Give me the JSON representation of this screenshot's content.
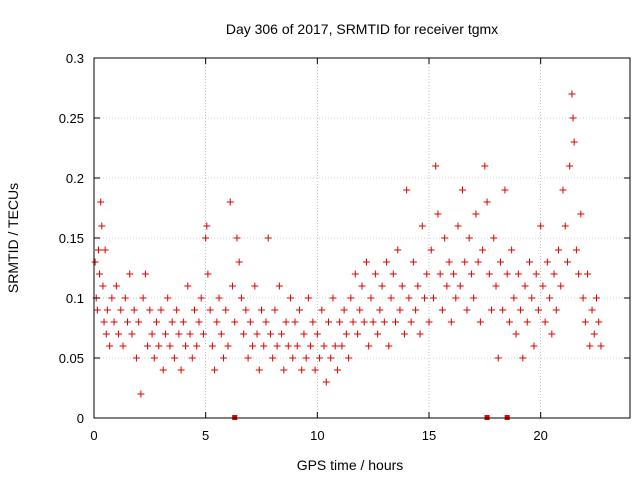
{
  "chart_data": {
    "type": "scatter",
    "title": "Day 306 of 2017, SRMTID for receiver tgmx",
    "xlabel": "GPS time / hours",
    "ylabel": "SRMTID / TECUs",
    "xlim": [
      0,
      24
    ],
    "ylim": [
      0,
      0.3
    ],
    "xticks": [
      0,
      5,
      10,
      15,
      20
    ],
    "xtick_labels": [
      "0",
      "5",
      "10",
      "15",
      "20"
    ],
    "yticks": [
      0,
      0.05,
      0.1,
      0.15,
      0.2,
      0.25,
      0.3
    ],
    "ytick_labels": [
      "0",
      "0.05",
      "0.1",
      "0.15",
      "0.2",
      "0.25",
      "0.3"
    ],
    "grid": true,
    "marker": "+",
    "color": "#e00000",
    "series": [
      {
        "name": "SRMTID",
        "points": [
          [
            0.05,
            0.13
          ],
          [
            0.1,
            0.1
          ],
          [
            0.15,
            0.09
          ],
          [
            0.2,
            0.14
          ],
          [
            0.25,
            0.12
          ],
          [
            0.3,
            0.18
          ],
          [
            0.35,
            0.16
          ],
          [
            0.4,
            0.11
          ],
          [
            0.45,
            0.08
          ],
          [
            0.5,
            0.14
          ],
          [
            0.55,
            0.07
          ],
          [
            0.6,
            0.09
          ],
          [
            0.7,
            0.06
          ],
          [
            0.8,
            0.1
          ],
          [
            0.9,
            0.08
          ],
          [
            1.0,
            0.11
          ],
          [
            1.1,
            0.07
          ],
          [
            1.2,
            0.09
          ],
          [
            1.3,
            0.06
          ],
          [
            1.4,
            0.1
          ],
          [
            1.5,
            0.08
          ],
          [
            1.6,
            0.12
          ],
          [
            1.7,
            0.07
          ],
          [
            1.8,
            0.09
          ],
          [
            1.9,
            0.05
          ],
          [
            2.0,
            0.08
          ],
          [
            2.1,
            0.02
          ],
          [
            2.2,
            0.1
          ],
          [
            2.3,
            0.12
          ],
          [
            2.4,
            0.06
          ],
          [
            2.5,
            0.09
          ],
          [
            2.6,
            0.07
          ],
          [
            2.7,
            0.05
          ],
          [
            2.8,
            0.08
          ],
          [
            2.9,
            0.06
          ],
          [
            3.0,
            0.09
          ],
          [
            3.1,
            0.04
          ],
          [
            3.2,
            0.07
          ],
          [
            3.3,
            0.1
          ],
          [
            3.4,
            0.06
          ],
          [
            3.5,
            0.08
          ],
          [
            3.6,
            0.05
          ],
          [
            3.7,
            0.09
          ],
          [
            3.8,
            0.07
          ],
          [
            3.9,
            0.04
          ],
          [
            4.0,
            0.08
          ],
          [
            4.1,
            0.06
          ],
          [
            4.2,
            0.11
          ],
          [
            4.3,
            0.07
          ],
          [
            4.4,
            0.05
          ],
          [
            4.5,
            0.09
          ],
          [
            4.6,
            0.06
          ],
          [
            4.7,
            0.08
          ],
          [
            4.8,
            0.1
          ],
          [
            4.9,
            0.07
          ],
          [
            5.0,
            0.15
          ],
          [
            5.05,
            0.16
          ],
          [
            5.1,
            0.12
          ],
          [
            5.2,
            0.09
          ],
          [
            5.3,
            0.06
          ],
          [
            5.4,
            0.04
          ],
          [
            5.5,
            0.08
          ],
          [
            5.6,
            0.1
          ],
          [
            5.7,
            0.07
          ],
          [
            5.8,
            0.05
          ],
          [
            5.9,
            0.09
          ],
          [
            6.0,
            0.06
          ],
          [
            6.1,
            0.18
          ],
          [
            6.2,
            0.11
          ],
          [
            6.3,
            0.08
          ],
          [
            6.4,
            0.15
          ],
          [
            6.5,
            0.13
          ],
          [
            6.6,
            0.1
          ],
          [
            6.7,
            0.07
          ],
          [
            6.8,
            0.09
          ],
          [
            6.9,
            0.05
          ],
          [
            7.0,
            0.08
          ],
          [
            7.1,
            0.06
          ],
          [
            7.2,
            0.11
          ],
          [
            7.3,
            0.07
          ],
          [
            7.4,
            0.04
          ],
          [
            7.5,
            0.09
          ],
          [
            7.6,
            0.06
          ],
          [
            7.7,
            0.08
          ],
          [
            7.8,
            0.15
          ],
          [
            7.9,
            0.07
          ],
          [
            8.0,
            0.05
          ],
          [
            8.1,
            0.09
          ],
          [
            8.2,
            0.06
          ],
          [
            8.3,
            0.11
          ],
          [
            8.4,
            0.07
          ],
          [
            8.5,
            0.04
          ],
          [
            8.6,
            0.08
          ],
          [
            8.7,
            0.06
          ],
          [
            8.8,
            0.1
          ],
          [
            8.9,
            0.05
          ],
          [
            9.0,
            0.08
          ],
          [
            9.1,
            0.06
          ],
          [
            9.2,
            0.09
          ],
          [
            9.3,
            0.04
          ],
          [
            9.4,
            0.07
          ],
          [
            9.5,
            0.05
          ],
          [
            9.6,
            0.1
          ],
          [
            9.7,
            0.06
          ],
          [
            9.8,
            0.08
          ],
          [
            9.9,
            0.04
          ],
          [
            10.0,
            0.07
          ],
          [
            10.1,
            0.05
          ],
          [
            10.2,
            0.09
          ],
          [
            10.3,
            0.06
          ],
          [
            10.4,
            0.03
          ],
          [
            10.5,
            0.08
          ],
          [
            10.6,
            0.05
          ],
          [
            10.7,
            0.1
          ],
          [
            10.8,
            0.06
          ],
          [
            10.9,
            0.04
          ],
          [
            11.0,
            0.08
          ],
          [
            11.1,
            0.06
          ],
          [
            11.2,
            0.09
          ],
          [
            11.3,
            0.07
          ],
          [
            11.4,
            0.05
          ],
          [
            11.5,
            0.1
          ],
          [
            11.6,
            0.08
          ],
          [
            11.7,
            0.12
          ],
          [
            11.8,
            0.07
          ],
          [
            11.9,
            0.09
          ],
          [
            12.0,
            0.11
          ],
          [
            12.1,
            0.08
          ],
          [
            12.2,
            0.13
          ],
          [
            12.3,
            0.06
          ],
          [
            12.4,
            0.1
          ],
          [
            12.5,
            0.08
          ],
          [
            12.6,
            0.12
          ],
          [
            12.7,
            0.07
          ],
          [
            12.8,
            0.09
          ],
          [
            12.9,
            0.11
          ],
          [
            13.0,
            0.08
          ],
          [
            13.1,
            0.13
          ],
          [
            13.2,
            0.06
          ],
          [
            13.3,
            0.1
          ],
          [
            13.4,
            0.12
          ],
          [
            13.5,
            0.08
          ],
          [
            13.6,
            0.14
          ],
          [
            13.7,
            0.09
          ],
          [
            13.8,
            0.11
          ],
          [
            13.9,
            0.07
          ],
          [
            14.0,
            0.19
          ],
          [
            14.1,
            0.1
          ],
          [
            14.2,
            0.08
          ],
          [
            14.3,
            0.13
          ],
          [
            14.4,
            0.09
          ],
          [
            14.5,
            0.11
          ],
          [
            14.6,
            0.07
          ],
          [
            14.7,
            0.16
          ],
          [
            14.8,
            0.1
          ],
          [
            14.9,
            0.12
          ],
          [
            15.0,
            0.08
          ],
          [
            15.1,
            0.14
          ],
          [
            15.2,
            0.1
          ],
          [
            15.3,
            0.21
          ],
          [
            15.4,
            0.17
          ],
          [
            15.5,
            0.12
          ],
          [
            15.6,
            0.09
          ],
          [
            15.7,
            0.15
          ],
          [
            15.8,
            0.11
          ],
          [
            15.9,
            0.13
          ],
          [
            16.0,
            0.08
          ],
          [
            16.1,
            0.12
          ],
          [
            16.2,
            0.1
          ],
          [
            16.3,
            0.16
          ],
          [
            16.4,
            0.11
          ],
          [
            16.5,
            0.19
          ],
          [
            16.6,
            0.13
          ],
          [
            16.7,
            0.09
          ],
          [
            16.8,
            0.15
          ],
          [
            16.9,
            0.12
          ],
          [
            17.0,
            0.1
          ],
          [
            17.1,
            0.17
          ],
          [
            17.2,
            0.13
          ],
          [
            17.3,
            0.08
          ],
          [
            17.4,
            0.14
          ],
          [
            17.5,
            0.21
          ],
          [
            17.6,
            0.18
          ],
          [
            17.7,
            0.12
          ],
          [
            17.8,
            0.09
          ],
          [
            17.9,
            0.15
          ],
          [
            18.0,
            0.11
          ],
          [
            18.1,
            0.05
          ],
          [
            18.2,
            0.13
          ],
          [
            18.3,
            0.09
          ],
          [
            18.4,
            0.19
          ],
          [
            18.5,
            0.12
          ],
          [
            18.6,
            0.08
          ],
          [
            18.7,
            0.14
          ],
          [
            18.8,
            0.1
          ],
          [
            18.9,
            0.07
          ],
          [
            19.0,
            0.12
          ],
          [
            19.1,
            0.09
          ],
          [
            19.2,
            0.05
          ],
          [
            19.3,
            0.11
          ],
          [
            19.4,
            0.08
          ],
          [
            19.5,
            0.13
          ],
          [
            19.6,
            0.1
          ],
          [
            19.7,
            0.06
          ],
          [
            19.8,
            0.12
          ],
          [
            19.9,
            0.09
          ],
          [
            20.0,
            0.16
          ],
          [
            20.1,
            0.11
          ],
          [
            20.2,
            0.08
          ],
          [
            20.3,
            0.13
          ],
          [
            20.4,
            0.1
          ],
          [
            20.5,
            0.07
          ],
          [
            20.6,
            0.12
          ],
          [
            20.7,
            0.09
          ],
          [
            20.8,
            0.14
          ],
          [
            20.9,
            0.11
          ],
          [
            21.0,
            0.19
          ],
          [
            21.1,
            0.16
          ],
          [
            21.2,
            0.13
          ],
          [
            21.3,
            0.21
          ],
          [
            21.4,
            0.27
          ],
          [
            21.45,
            0.25
          ],
          [
            21.5,
            0.23
          ],
          [
            21.6,
            0.14
          ],
          [
            21.7,
            0.12
          ],
          [
            21.8,
            0.17
          ],
          [
            21.9,
            0.1
          ],
          [
            22.0,
            0.08
          ],
          [
            22.1,
            0.12
          ],
          [
            22.2,
            0.06
          ],
          [
            22.3,
            0.09
          ],
          [
            22.4,
            0.07
          ],
          [
            22.5,
            0.1
          ],
          [
            22.6,
            0.08
          ],
          [
            22.7,
            0.06
          ]
        ]
      }
    ],
    "markers_on_axis": [
      6.3,
      17.6,
      18.5
    ]
  }
}
